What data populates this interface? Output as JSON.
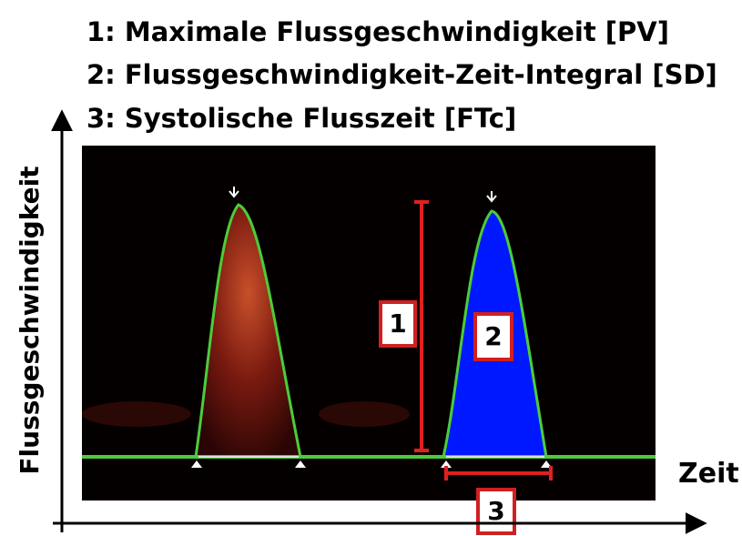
{
  "legend": [
    "1: Maximale Flussgeschwindigkeit [PV]",
    "2: Flussgeschwindigkeit-Zeit-Integral [SD]",
    "3: Systolische Flusszeit [FTc]"
  ],
  "axes": {
    "y": "Flussgeschwindigkeit",
    "x": "Zeit"
  },
  "markers": [
    "1",
    "2",
    "3"
  ]
}
